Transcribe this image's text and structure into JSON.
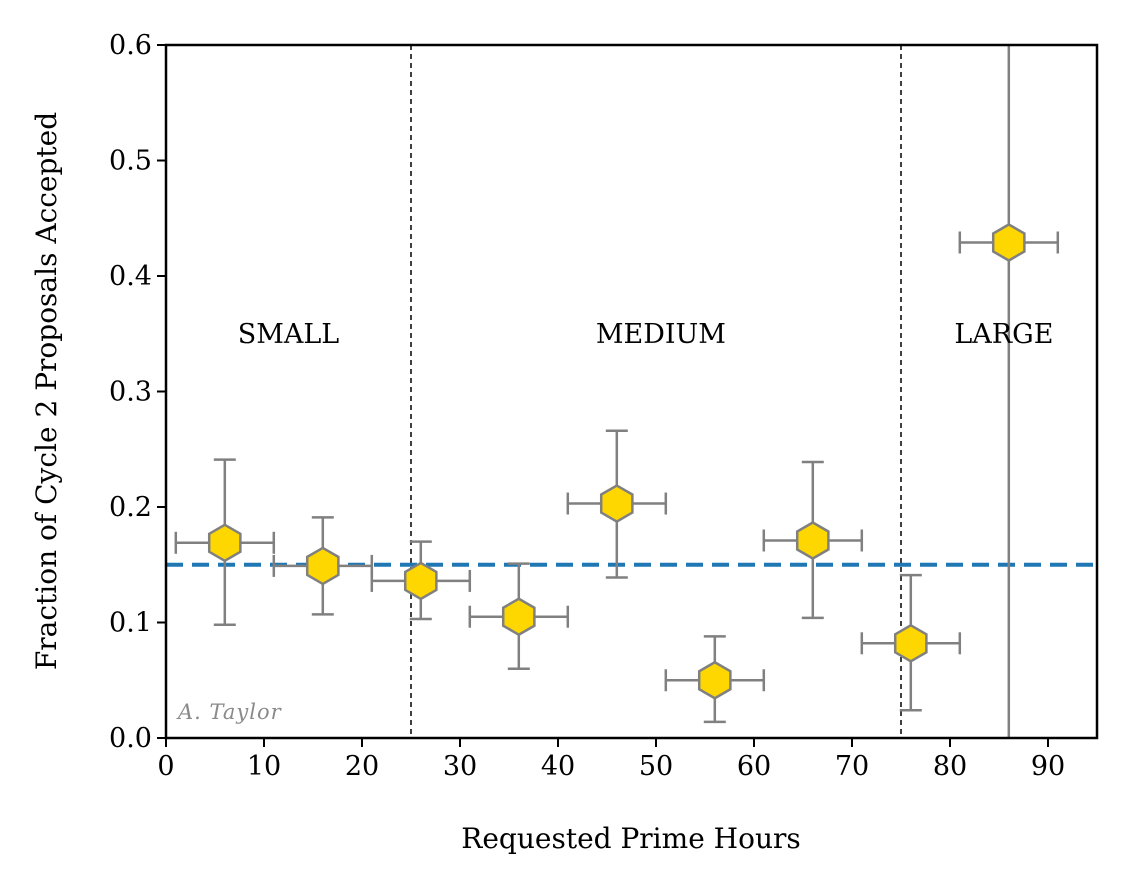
{
  "chart_data": {
    "type": "scatter",
    "title": "",
    "xlabel": "Requested Prime Hours",
    "ylabel": "Fraction of Cycle 2 Proposals Accepted",
    "xlim": [
      0,
      95
    ],
    "ylim": [
      0,
      0.6
    ],
    "xticks": [
      0,
      10,
      20,
      30,
      40,
      50,
      60,
      70,
      80,
      90
    ],
    "xtick_labels": [
      "0",
      "10",
      "20",
      "30",
      "40",
      "50",
      "60",
      "70",
      "80",
      "90"
    ],
    "yticks": [
      0.0,
      0.1,
      0.2,
      0.3,
      0.4,
      0.5,
      0.6
    ],
    "ytick_labels": [
      "0.0",
      "0.1",
      "0.2",
      "0.3",
      "0.4",
      "0.5",
      "0.6"
    ],
    "points": [
      {
        "x": 6,
        "y": 0.169,
        "xerr": 5,
        "y_low": 0.098,
        "y_high": 0.241
      },
      {
        "x": 16,
        "y": 0.149,
        "xerr": 5,
        "y_low": 0.107,
        "y_high": 0.191
      },
      {
        "x": 26,
        "y": 0.136,
        "xerr": 5,
        "y_low": 0.103,
        "y_high": 0.17
      },
      {
        "x": 36,
        "y": 0.105,
        "xerr": 5,
        "y_low": 0.06,
        "y_high": 0.151
      },
      {
        "x": 46,
        "y": 0.203,
        "xerr": 5,
        "y_low": 0.139,
        "y_high": 0.266
      },
      {
        "x": 56,
        "y": 0.05,
        "xerr": 5,
        "y_low": 0.014,
        "y_high": 0.088
      },
      {
        "x": 66,
        "y": 0.171,
        "xerr": 5,
        "y_low": 0.104,
        "y_high": 0.239
      },
      {
        "x": 76,
        "y": 0.082,
        "xerr": 5,
        "y_low": 0.024,
        "y_high": 0.141
      },
      {
        "x": 86,
        "y": 0.429,
        "xerr": 5,
        "y_low": 0.0,
        "y_high": 0.6
      }
    ],
    "reference_line": {
      "y": 0.15,
      "style": "dashed",
      "color": "#1f77b4"
    },
    "boundaries": [
      25,
      75
    ],
    "regions": [
      {
        "label": "SMALL",
        "x": 12.5,
        "y": 0.35
      },
      {
        "label": "MEDIUM",
        "x": 50.5,
        "y": 0.35
      },
      {
        "label": "LARGE",
        "x": 85.5,
        "y": 0.35
      }
    ],
    "credit": "A. Taylor",
    "colors": {
      "marker_fill": "#FFD700",
      "marker_edge": "#808080",
      "errorbar": "#808080",
      "boundary": "#000000"
    }
  }
}
